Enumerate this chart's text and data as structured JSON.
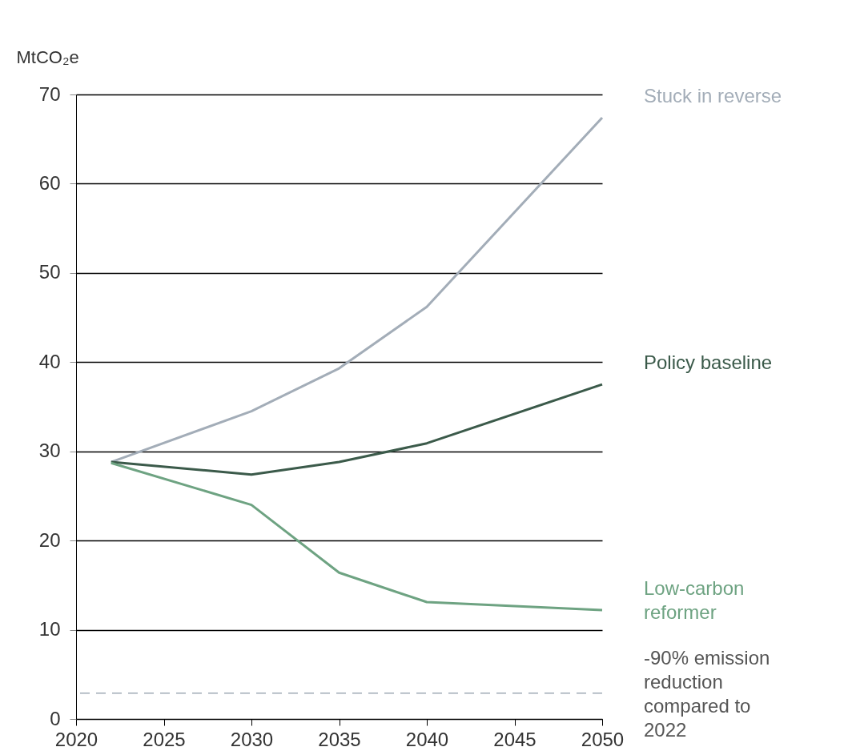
{
  "chart_data": {
    "type": "line",
    "ylabel": "MtCO₂e",
    "x": [
      2022,
      2030,
      2035,
      2040,
      2050
    ],
    "series": [
      {
        "name": "Stuck in reverse",
        "color": "#a3adb8",
        "values": [
          28.8,
          34.5,
          39.3,
          46.2,
          67.4
        ]
      },
      {
        "name": "Policy baseline",
        "color": "#3b5a4a",
        "values": [
          28.8,
          27.4,
          28.8,
          30.9,
          37.5
        ]
      },
      {
        "name": "Low-carbon reformer",
        "color": "#6ea382",
        "values": [
          28.7,
          24.0,
          16.4,
          13.1,
          12.2
        ]
      }
    ],
    "xlim": [
      2020,
      2050
    ],
    "xticks": [
      2020,
      2025,
      2030,
      2035,
      2040,
      2045,
      2050
    ],
    "ylim": [
      0,
      70
    ],
    "yticks": [
      0,
      10,
      20,
      30,
      40,
      50,
      60,
      70
    ],
    "ref_lines": [
      {
        "axis": "y",
        "value": 2.9,
        "label": "-90% emission reduction compared to 2022",
        "color": "#a0aab5",
        "line_style": "dashed"
      }
    ],
    "grid": "y",
    "legend": false,
    "marker": "none",
    "line_style": "solid"
  }
}
